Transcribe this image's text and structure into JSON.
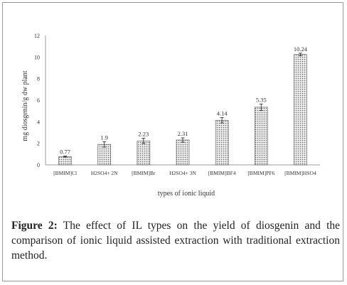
{
  "colors": {
    "bar_fill": "#c8c8c8",
    "bar_stroke": "#555555",
    "axis": "#999999",
    "text": "#333333"
  },
  "chart_data": {
    "type": "bar",
    "categories": [
      "[BMIM]Cl",
      "H2SO4+ 2N",
      "[BMIM]Br",
      "H2SO4+ 3N",
      "[BMIM]BF4",
      "[BMIM]PF6",
      "[BMIM]HSO4"
    ],
    "values": [
      0.77,
      1.9,
      2.23,
      2.31,
      4.14,
      5.35,
      10.24
    ],
    "value_labels": [
      "0.77",
      "1.9",
      "2.23",
      "2.31",
      "4.14",
      "5.35",
      "10.24"
    ],
    "error_bars": [
      0.05,
      0.25,
      0.25,
      0.2,
      0.25,
      0.3,
      0.12
    ],
    "xlabel": "types of ionic liquid",
    "ylabel": "mg diosgenin/g dw plant",
    "ylim": [
      0,
      12
    ],
    "yticks": [
      "0",
      "2",
      "4",
      "6",
      "8",
      "10",
      "12"
    ],
    "grid": false,
    "legend": "none",
    "bar_pattern": "dotted"
  },
  "caption": {
    "label": "Figure 2:",
    "text": " The effect of IL types on the yield of diosgenin and the comparison of ionic liquid assisted extraction with traditional extraction method."
  }
}
